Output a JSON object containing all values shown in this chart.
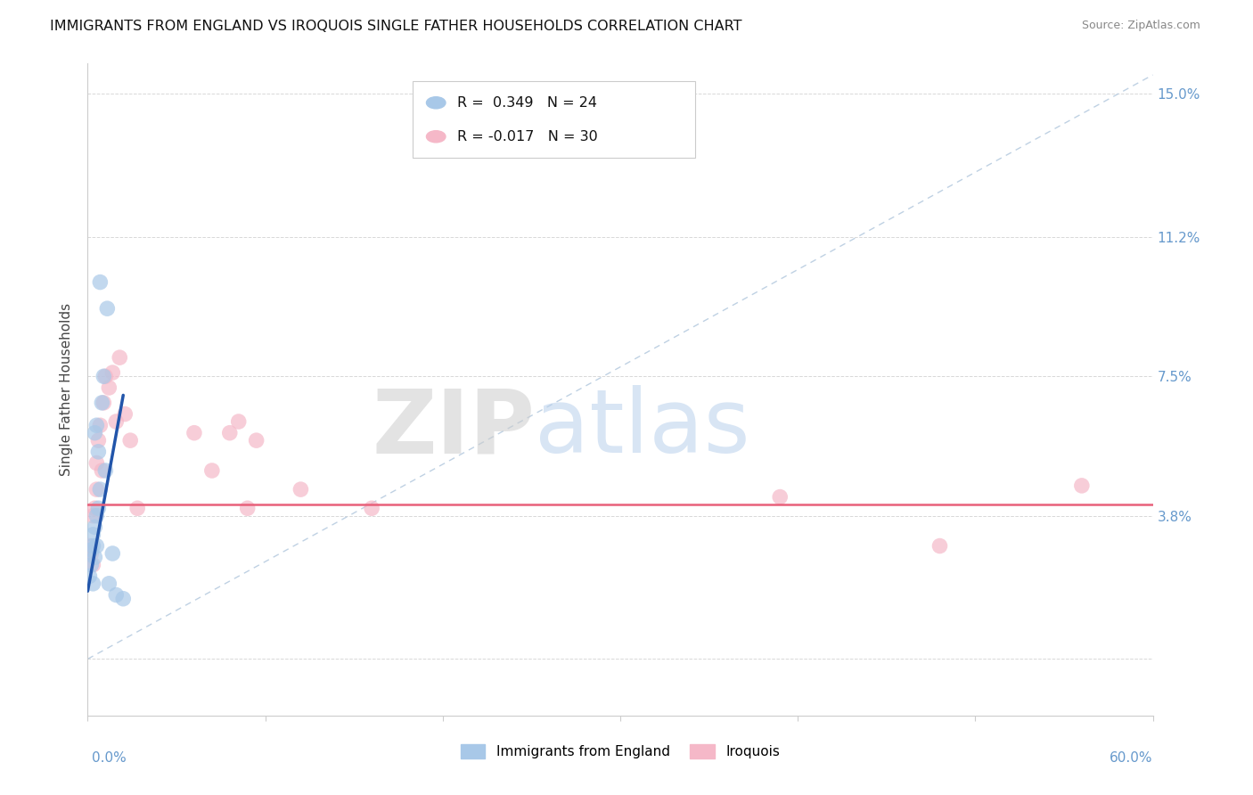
{
  "title": "IMMIGRANTS FROM ENGLAND VS IROQUOIS SINGLE FATHER HOUSEHOLDS CORRELATION CHART",
  "source": "Source: ZipAtlas.com",
  "ylabel": "Single Father Households",
  "yticks": [
    0.0,
    0.038,
    0.075,
    0.112,
    0.15
  ],
  "ytick_labels": [
    "",
    "3.8%",
    "7.5%",
    "11.2%",
    "15.0%"
  ],
  "xlim": [
    0.0,
    0.6
  ],
  "ylim": [
    -0.015,
    0.158
  ],
  "watermark_zip": "ZIP",
  "watermark_atlas": "atlas",
  "england_scatter_x": [
    0.001,
    0.002,
    0.002,
    0.003,
    0.003,
    0.003,
    0.004,
    0.004,
    0.004,
    0.005,
    0.005,
    0.005,
    0.006,
    0.006,
    0.007,
    0.007,
    0.008,
    0.009,
    0.01,
    0.011,
    0.012,
    0.014,
    0.016,
    0.02
  ],
  "england_scatter_y": [
    0.022,
    0.025,
    0.029,
    0.02,
    0.03,
    0.033,
    0.027,
    0.035,
    0.06,
    0.03,
    0.038,
    0.062,
    0.04,
    0.055,
    0.045,
    0.1,
    0.068,
    0.075,
    0.05,
    0.093,
    0.02,
    0.028,
    0.017,
    0.016
  ],
  "iroquois_scatter_x": [
    0.001,
    0.002,
    0.003,
    0.003,
    0.004,
    0.005,
    0.005,
    0.006,
    0.007,
    0.008,
    0.009,
    0.01,
    0.012,
    0.014,
    0.016,
    0.018,
    0.021,
    0.024,
    0.028,
    0.06,
    0.07,
    0.08,
    0.085,
    0.09,
    0.095,
    0.12,
    0.16,
    0.39,
    0.48,
    0.56
  ],
  "iroquois_scatter_y": [
    0.03,
    0.028,
    0.025,
    0.038,
    0.04,
    0.045,
    0.052,
    0.058,
    0.062,
    0.05,
    0.068,
    0.075,
    0.072,
    0.076,
    0.063,
    0.08,
    0.065,
    0.058,
    0.04,
    0.06,
    0.05,
    0.06,
    0.063,
    0.04,
    0.058,
    0.045,
    0.04,
    0.043,
    0.03,
    0.046
  ],
  "england_line_x": [
    0.0,
    0.02
  ],
  "england_line_y": [
    0.018,
    0.07
  ],
  "iroquois_line_y": 0.041,
  "diagonal_line_x": [
    0.0,
    0.6
  ],
  "diagonal_line_y": [
    0.0,
    0.155
  ],
  "england_color": "#a8c8e8",
  "iroquois_color": "#f5b8c8",
  "england_line_color": "#2255aa",
  "iroquois_line_color": "#e8607a",
  "diagonal_color": "#b8cce0",
  "title_fontsize": 11.5,
  "source_fontsize": 9,
  "background_color": "#ffffff",
  "grid_color": "#d8d8d8",
  "ytick_color": "#6699cc",
  "xtick_color": "#6699cc",
  "legend_R1": "R =  0.349",
  "legend_N1": "N = 24",
  "legend_R2": "R = -0.017",
  "legend_N2": "N = 30",
  "legend_label1": "Immigrants from England",
  "legend_label2": "Iroquois"
}
